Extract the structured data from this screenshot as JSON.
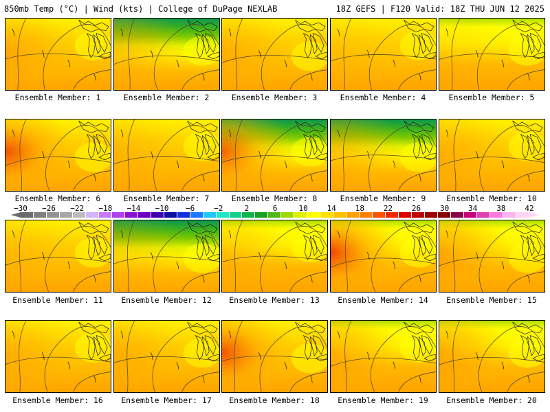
{
  "header": {
    "title_left": "850mb Temp (°C) | Wind (kts) | College of DuPage NEXLAB",
    "title_right": "18Z GEFS | F120 Valid: 18Z THU JUN 12 2025"
  },
  "colors": {
    "warm_scale": [
      "#ffff00",
      "#fff200",
      "#ffd300",
      "#ffb800",
      "#ffa300",
      "#ff8c00",
      "#ff6400",
      "#f03c00"
    ],
    "cool_scale": [
      "#ffff00",
      "#e2f200",
      "#b0e000",
      "#7cc800",
      "#35b020",
      "#109850"
    ],
    "contour": "#5a4a2a",
    "coast": "#1a1a1a"
  },
  "colorbar": {
    "tick_labels": [
      "−30",
      "−26",
      "−22",
      "−18",
      "−14",
      "−10",
      "−6",
      "−2",
      "2",
      "6",
      "10",
      "14",
      "18",
      "22",
      "26",
      "30",
      "34",
      "38",
      "42"
    ],
    "swatches": [
      "#6b6b6b",
      "#7f7f7f",
      "#939393",
      "#a7a7a7",
      "#bcbcbc",
      "#d2b4ff",
      "#c878ff",
      "#b040f0",
      "#8c10d8",
      "#6a00c0",
      "#3c00b0",
      "#1010a0",
      "#1030e0",
      "#1e78ff",
      "#1ec8ff",
      "#20e6c8",
      "#10d08c",
      "#10b450",
      "#18a020",
      "#50b818",
      "#a0d800",
      "#e0f000",
      "#ffff00",
      "#ffe000",
      "#ffc000",
      "#ffa000",
      "#ff8000",
      "#ff5000",
      "#f02800",
      "#e00000",
      "#c00000",
      "#a00000",
      "#880000",
      "#8c0048",
      "#c8007a",
      "#e040b0",
      "#ff78dc",
      "#ffb4ee",
      "#ffd4f5"
    ]
  },
  "members": [
    {
      "label": "Ensemble Member:",
      "number": "1",
      "palette": "warm",
      "hot_left": 0.55,
      "cool_top": 0.0
    },
    {
      "label": "Ensemble Member:",
      "number": "2",
      "palette": "mixed",
      "hot_left": 0.45,
      "cool_top": 0.55
    },
    {
      "label": "Ensemble Member:",
      "number": "3",
      "palette": "warm",
      "hot_left": 0.45,
      "cool_top": 0.05
    },
    {
      "label": "Ensemble Member:",
      "number": "4",
      "palette": "warm",
      "hot_left": 0.2,
      "cool_top": 0.0
    },
    {
      "label": "Ensemble Member:",
      "number": "5",
      "palette": "warm",
      "hot_left": 0.2,
      "cool_top": 0.2
    },
    {
      "label": "Ensemble Member:",
      "number": "6",
      "palette": "warm",
      "hot_left": 0.85,
      "cool_top": 0.0
    },
    {
      "label": "Ensemble Member:",
      "number": "7",
      "palette": "warm",
      "hot_left": 0.35,
      "cool_top": 0.05
    },
    {
      "label": "Ensemble Member:",
      "number": "8",
      "palette": "mixed",
      "hot_left": 0.8,
      "cool_top": 0.55
    },
    {
      "label": "Ensemble Member:",
      "number": "9",
      "palette": "mixed",
      "hot_left": 0.5,
      "cool_top": 0.5
    },
    {
      "label": "Ensemble Member:",
      "number": "10",
      "palette": "warm",
      "hot_left": 0.45,
      "cool_top": 0.0
    },
    {
      "label": "Ensemble Member:",
      "number": "11",
      "palette": "warm",
      "hot_left": 0.3,
      "cool_top": 0.05
    },
    {
      "label": "Ensemble Member:",
      "number": "12",
      "palette": "mixed",
      "hot_left": 0.3,
      "cool_top": 0.45
    },
    {
      "label": "Ensemble Member:",
      "number": "13",
      "palette": "warm",
      "hot_left": 0.4,
      "cool_top": 0.15
    },
    {
      "label": "Ensemble Member:",
      "number": "14",
      "palette": "warm",
      "hot_left": 0.95,
      "cool_top": 0.2
    },
    {
      "label": "Ensemble Member:",
      "number": "15",
      "palette": "warm",
      "hot_left": 0.7,
      "cool_top": 0.1
    },
    {
      "label": "Ensemble Member:",
      "number": "16",
      "palette": "warm",
      "hot_left": 0.45,
      "cool_top": 0.0
    },
    {
      "label": "Ensemble Member:",
      "number": "17",
      "palette": "warm",
      "hot_left": 0.45,
      "cool_top": 0.0
    },
    {
      "label": "Ensemble Member:",
      "number": "18",
      "palette": "warm",
      "hot_left": 0.85,
      "cool_top": 0.0
    },
    {
      "label": "Ensemble Member:",
      "number": "19",
      "palette": "warm",
      "hot_left": 0.6,
      "cool_top": 0.15
    },
    {
      "label": "Ensemble Member:",
      "number": "20",
      "palette": "warm",
      "hot_left": 0.65,
      "cool_top": 0.3
    }
  ]
}
